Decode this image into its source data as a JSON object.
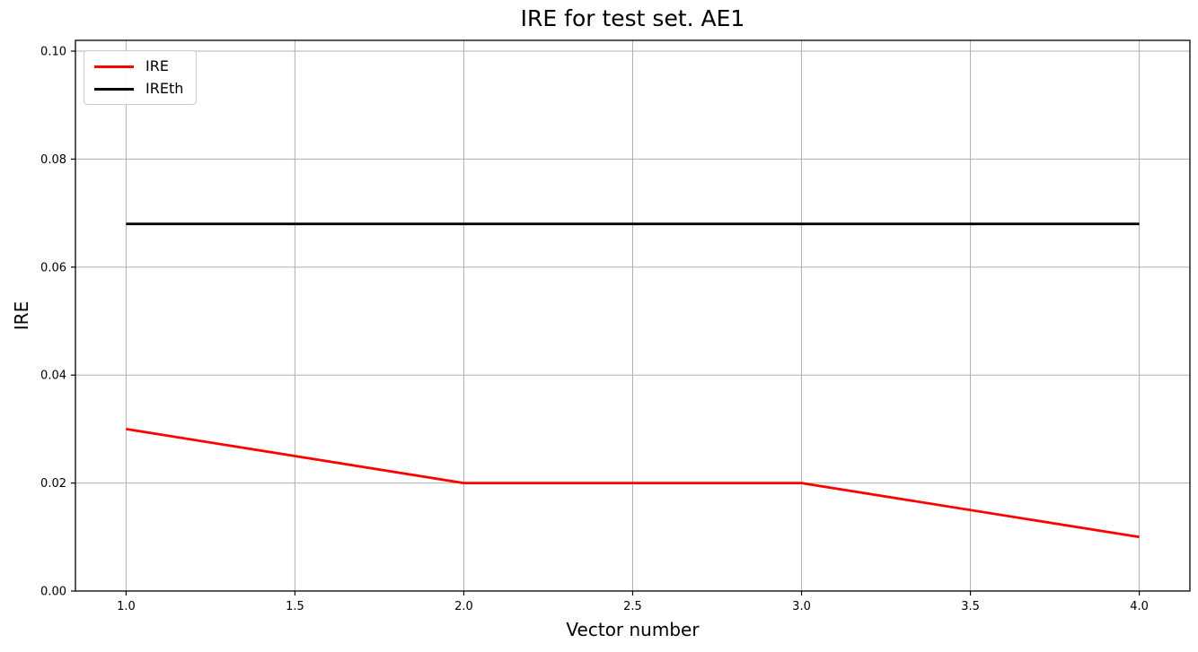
{
  "chart_data": {
    "type": "line",
    "title": "IRE for test set. AE1",
    "xlabel": "Vector number",
    "ylabel": "IRE",
    "x": [
      1,
      2,
      3,
      4
    ],
    "series": [
      {
        "name": "IRE",
        "color": "#ff0000",
        "values": [
          0.03,
          0.02,
          0.02,
          0.01
        ]
      },
      {
        "name": "IREth",
        "color": "#000000",
        "values": [
          0.068,
          0.068,
          0.068,
          0.068
        ]
      }
    ],
    "xlim": [
      0.85,
      4.15
    ],
    "ylim": [
      0,
      0.102
    ],
    "xticks": {
      "values": [
        1.0,
        1.5,
        2.0,
        2.5,
        3.0,
        3.5,
        4.0
      ],
      "labels": [
        "1.0",
        "1.5",
        "2.0",
        "2.5",
        "3.0",
        "3.5",
        "4.0"
      ]
    },
    "yticks": {
      "values": [
        0.0,
        0.02,
        0.04,
        0.06,
        0.08,
        0.1
      ],
      "labels": [
        "0.00",
        "0.02",
        "0.04",
        "0.06",
        "0.08",
        "0.10"
      ]
    },
    "grid": true,
    "legend_position": "upper left",
    "grid_color": "#b0b0b0",
    "spine_color": "#000000"
  }
}
